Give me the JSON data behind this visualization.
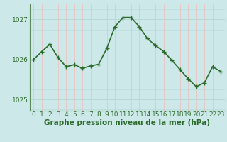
{
  "x": [
    0,
    1,
    2,
    3,
    4,
    5,
    6,
    7,
    8,
    9,
    10,
    11,
    12,
    13,
    14,
    15,
    16,
    17,
    18,
    19,
    20,
    21,
    22,
    23
  ],
  "y": [
    1026.0,
    1026.2,
    1026.38,
    1026.05,
    1025.82,
    1025.87,
    1025.78,
    1025.84,
    1025.88,
    1026.28,
    1026.82,
    1027.05,
    1027.05,
    1026.82,
    1026.52,
    1026.35,
    1026.2,
    1025.98,
    1025.75,
    1025.52,
    1025.32,
    1025.42,
    1025.82,
    1025.7
  ],
  "line_color": "#2d6b2d",
  "marker_color": "#2d6b2d",
  "bg_color": "#cce8e8",
  "grid_v_color": "#e8c8c8",
  "grid_h_color": "#b8d8d8",
  "spine_color": "#5a8a5a",
  "xlabel": "Graphe pression niveau de la mer (hPa)",
  "xlabel_fontsize": 7.5,
  "xlabel_fontweight": "bold",
  "xlabel_color": "#2d6b2d",
  "yticks": [
    1025,
    1026,
    1027
  ],
  "ylim": [
    1024.72,
    1027.38
  ],
  "xlim": [
    -0.5,
    23.5
  ],
  "xticks": [
    0,
    1,
    2,
    3,
    4,
    5,
    6,
    7,
    8,
    9,
    10,
    11,
    12,
    13,
    14,
    15,
    16,
    17,
    18,
    19,
    20,
    21,
    22,
    23
  ],
  "tick_fontsize": 6.5,
  "tick_color": "#2d6b2d",
  "marker_size": 4,
  "line_width": 1.2,
  "marker_edge_width": 1.0
}
